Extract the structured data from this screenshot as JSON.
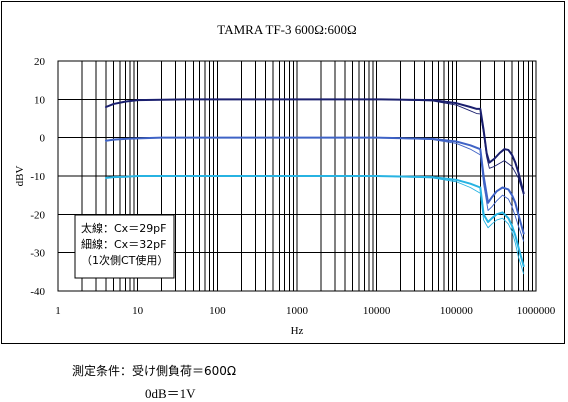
{
  "chart_data": {
    "type": "line",
    "title": "TAMRA TF-3 600Ω:600Ω",
    "xlabel": "Hz",
    "ylabel": "dBV",
    "x_scale": "log",
    "xlim": [
      1,
      1000000
    ],
    "ylim": [
      -40,
      20
    ],
    "x_ticks": [
      "1",
      "10",
      "100",
      "1000",
      "10000",
      "100000",
      "1000000"
    ],
    "y_ticks": [
      "20",
      "10",
      "0",
      "-10",
      "-20",
      "-30",
      "-40"
    ],
    "grid": true,
    "legend": {
      "placement": "bottom-left",
      "lines": [
        "太線：Cx＝29pF",
        "細線：Cx＝32pF",
        "（1次側CT使用）"
      ]
    },
    "colors": {
      "series_top": "#1a1f6e",
      "series_mid": "#3f63c6",
      "series_low": "#27b3e2",
      "grid": "#000000"
    },
    "series": [
      {
        "group": "top",
        "weight": "thick",
        "x": [
          4,
          5,
          7,
          10,
          20,
          40,
          100,
          1000,
          10000,
          50000,
          100000,
          150000,
          180000,
          200000,
          220000,
          240000,
          260000,
          300000,
          350000,
          400000,
          450000,
          500000,
          550000,
          600000,
          700000
        ],
        "y": [
          8,
          8.8,
          9.4,
          9.8,
          9.9,
          10,
          10,
          10,
          10,
          9.8,
          9,
          8,
          7.5,
          7.5,
          2,
          -4,
          -6.5,
          -5.5,
          -4,
          -3,
          -3.2,
          -4.5,
          -6.5,
          -9,
          -14.5
        ]
      },
      {
        "group": "top",
        "weight": "thin",
        "x": [
          4,
          5,
          7,
          10,
          20,
          40,
          100,
          1000,
          10000,
          50000,
          100000,
          150000,
          180000,
          200000,
          220000,
          240000,
          260000,
          300000,
          400000,
          500000,
          600000,
          700000
        ],
        "y": [
          8,
          8.8,
          9.4,
          9.8,
          9.9,
          10,
          10,
          10,
          10,
          9.6,
          8.5,
          7,
          6.3,
          6.2,
          1,
          -5,
          -8,
          -7.5,
          -6,
          -7.5,
          -10.5,
          -15
        ]
      },
      {
        "group": "mid",
        "weight": "thick",
        "x": [
          4,
          5,
          7,
          10,
          20,
          40,
          100,
          1000,
          10000,
          50000,
          100000,
          150000,
          200000,
          220000,
          250000,
          280000,
          320000,
          380000,
          450000,
          500000,
          550000,
          600000,
          700000
        ],
        "y": [
          -0.8,
          -0.5,
          -0.3,
          -0.2,
          0,
          0,
          0,
          0,
          0,
          -0.3,
          -1,
          -2,
          -3,
          -10,
          -17,
          -15.5,
          -14,
          -13,
          -13.5,
          -15,
          -17,
          -20,
          -25
        ]
      },
      {
        "group": "mid",
        "weight": "thin",
        "x": [
          4,
          5,
          7,
          10,
          20,
          40,
          100,
          1000,
          10000,
          50000,
          100000,
          150000,
          200000,
          220000,
          250000,
          280000,
          320000,
          380000,
          450000,
          500000,
          550000,
          600000,
          700000
        ],
        "y": [
          -0.8,
          -0.5,
          -0.3,
          -0.2,
          0,
          0,
          0,
          0,
          0,
          -0.5,
          -1.5,
          -3,
          -4.5,
          -12,
          -19,
          -18,
          -16.5,
          -15,
          -16,
          -18,
          -20.5,
          -23,
          -27
        ]
      },
      {
        "group": "low",
        "weight": "thick",
        "x": [
          4,
          5,
          7,
          10,
          20,
          40,
          100,
          1000,
          10000,
          50000,
          100000,
          150000,
          200000,
          220000,
          250000,
          280000,
          320000,
          380000,
          450000,
          500000,
          550000,
          600000,
          700000
        ],
        "y": [
          -10.5,
          -10.3,
          -10.2,
          -10,
          -10,
          -10,
          -10,
          -10,
          -10,
          -10.3,
          -11,
          -12,
          -13,
          -20,
          -22,
          -21,
          -20,
          -19.5,
          -21,
          -23,
          -25.5,
          -28.5,
          -33.5
        ]
      },
      {
        "group": "low",
        "weight": "thin",
        "x": [
          4,
          5,
          7,
          10,
          20,
          40,
          100,
          1000,
          10000,
          50000,
          100000,
          150000,
          200000,
          220000,
          250000,
          280000,
          320000,
          380000,
          450000,
          500000,
          550000,
          600000,
          700000
        ],
        "y": [
          -10.5,
          -10.3,
          -10.2,
          -10,
          -10,
          -10,
          -10,
          -10,
          -10,
          -10.5,
          -11.5,
          -13,
          -14.5,
          -21.5,
          -23.5,
          -22.5,
          -21.5,
          -21,
          -22.5,
          -24.5,
          -27.5,
          -31,
          -35.5
        ]
      }
    ]
  },
  "conditions": {
    "line1": "測定条件：受け側負荷＝600Ω",
    "line2": "0dB＝1V"
  }
}
